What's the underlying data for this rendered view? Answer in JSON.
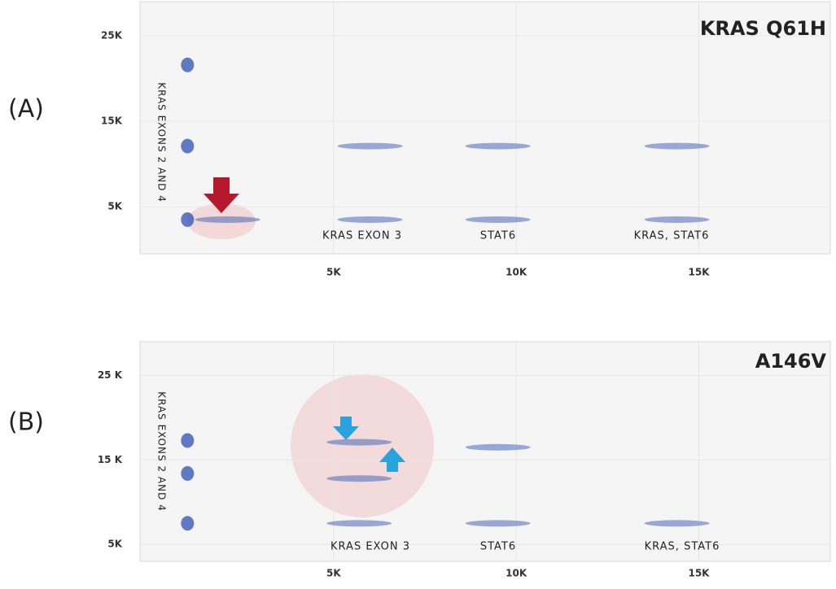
{
  "chart_data": [
    {
      "type": "scatter",
      "panel_label": "(A)",
      "title": "KRAS  Q61H",
      "y_label": "KRAS EXONS 2 AND 4",
      "annotations": [
        "KRAS  EXON 3",
        "STAT6",
        "KRAS, STAT6"
      ],
      "xlim": [
        -300,
        18600
      ],
      "ylim": [
        -500,
        29000
      ],
      "xticks": [
        {
          "value": 5000,
          "label": "5K"
        },
        {
          "value": 10000,
          "label": "10K"
        },
        {
          "value": 15000,
          "label": "15K"
        }
      ],
      "yticks": [
        {
          "value": 5000,
          "label": "5K"
        },
        {
          "value": 15000,
          "label": "15K"
        },
        {
          "value": 25000,
          "label": "25K"
        }
      ],
      "grid": true,
      "series": [
        {
          "color": "#3a5bb5",
          "x": [
            1000,
            1000,
            1000,
            2100,
            6000,
            6000,
            9500,
            9500,
            14400,
            14400
          ],
          "values": [
            21600,
            12100,
            3500,
            3500,
            12100,
            3500,
            12100,
            3500,
            12100,
            3500
          ]
        }
      ]
    },
    {
      "type": "scatter",
      "panel_label": "(B)",
      "title": "A146V",
      "y_label": "KRAS EXONS 2 AND 4",
      "annotations": [
        "KRAS  EXON 3",
        "STAT6",
        "KRAS, STAT6"
      ],
      "xlim": [
        -300,
        18600
      ],
      "ylim": [
        3000,
        29000
      ],
      "xticks": [
        {
          "value": 5000,
          "label": "5K"
        },
        {
          "value": 10000,
          "label": "10K"
        },
        {
          "value": 15000,
          "label": "15K"
        }
      ],
      "yticks": [
        {
          "value": 5000,
          "label": "5K"
        },
        {
          "value": 15000,
          "label": "15 K"
        },
        {
          "value": 25000,
          "label": "25 K"
        }
      ],
      "grid": true,
      "series": [
        {
          "color": "#3a5bb5",
          "x": [
            1000,
            1000,
            1000,
            5700,
            5700,
            5700,
            9500,
            9500,
            14400
          ],
          "values": [
            17300,
            13400,
            7500,
            17100,
            12800,
            7500,
            16500,
            7500,
            7500
          ]
        }
      ]
    }
  ]
}
